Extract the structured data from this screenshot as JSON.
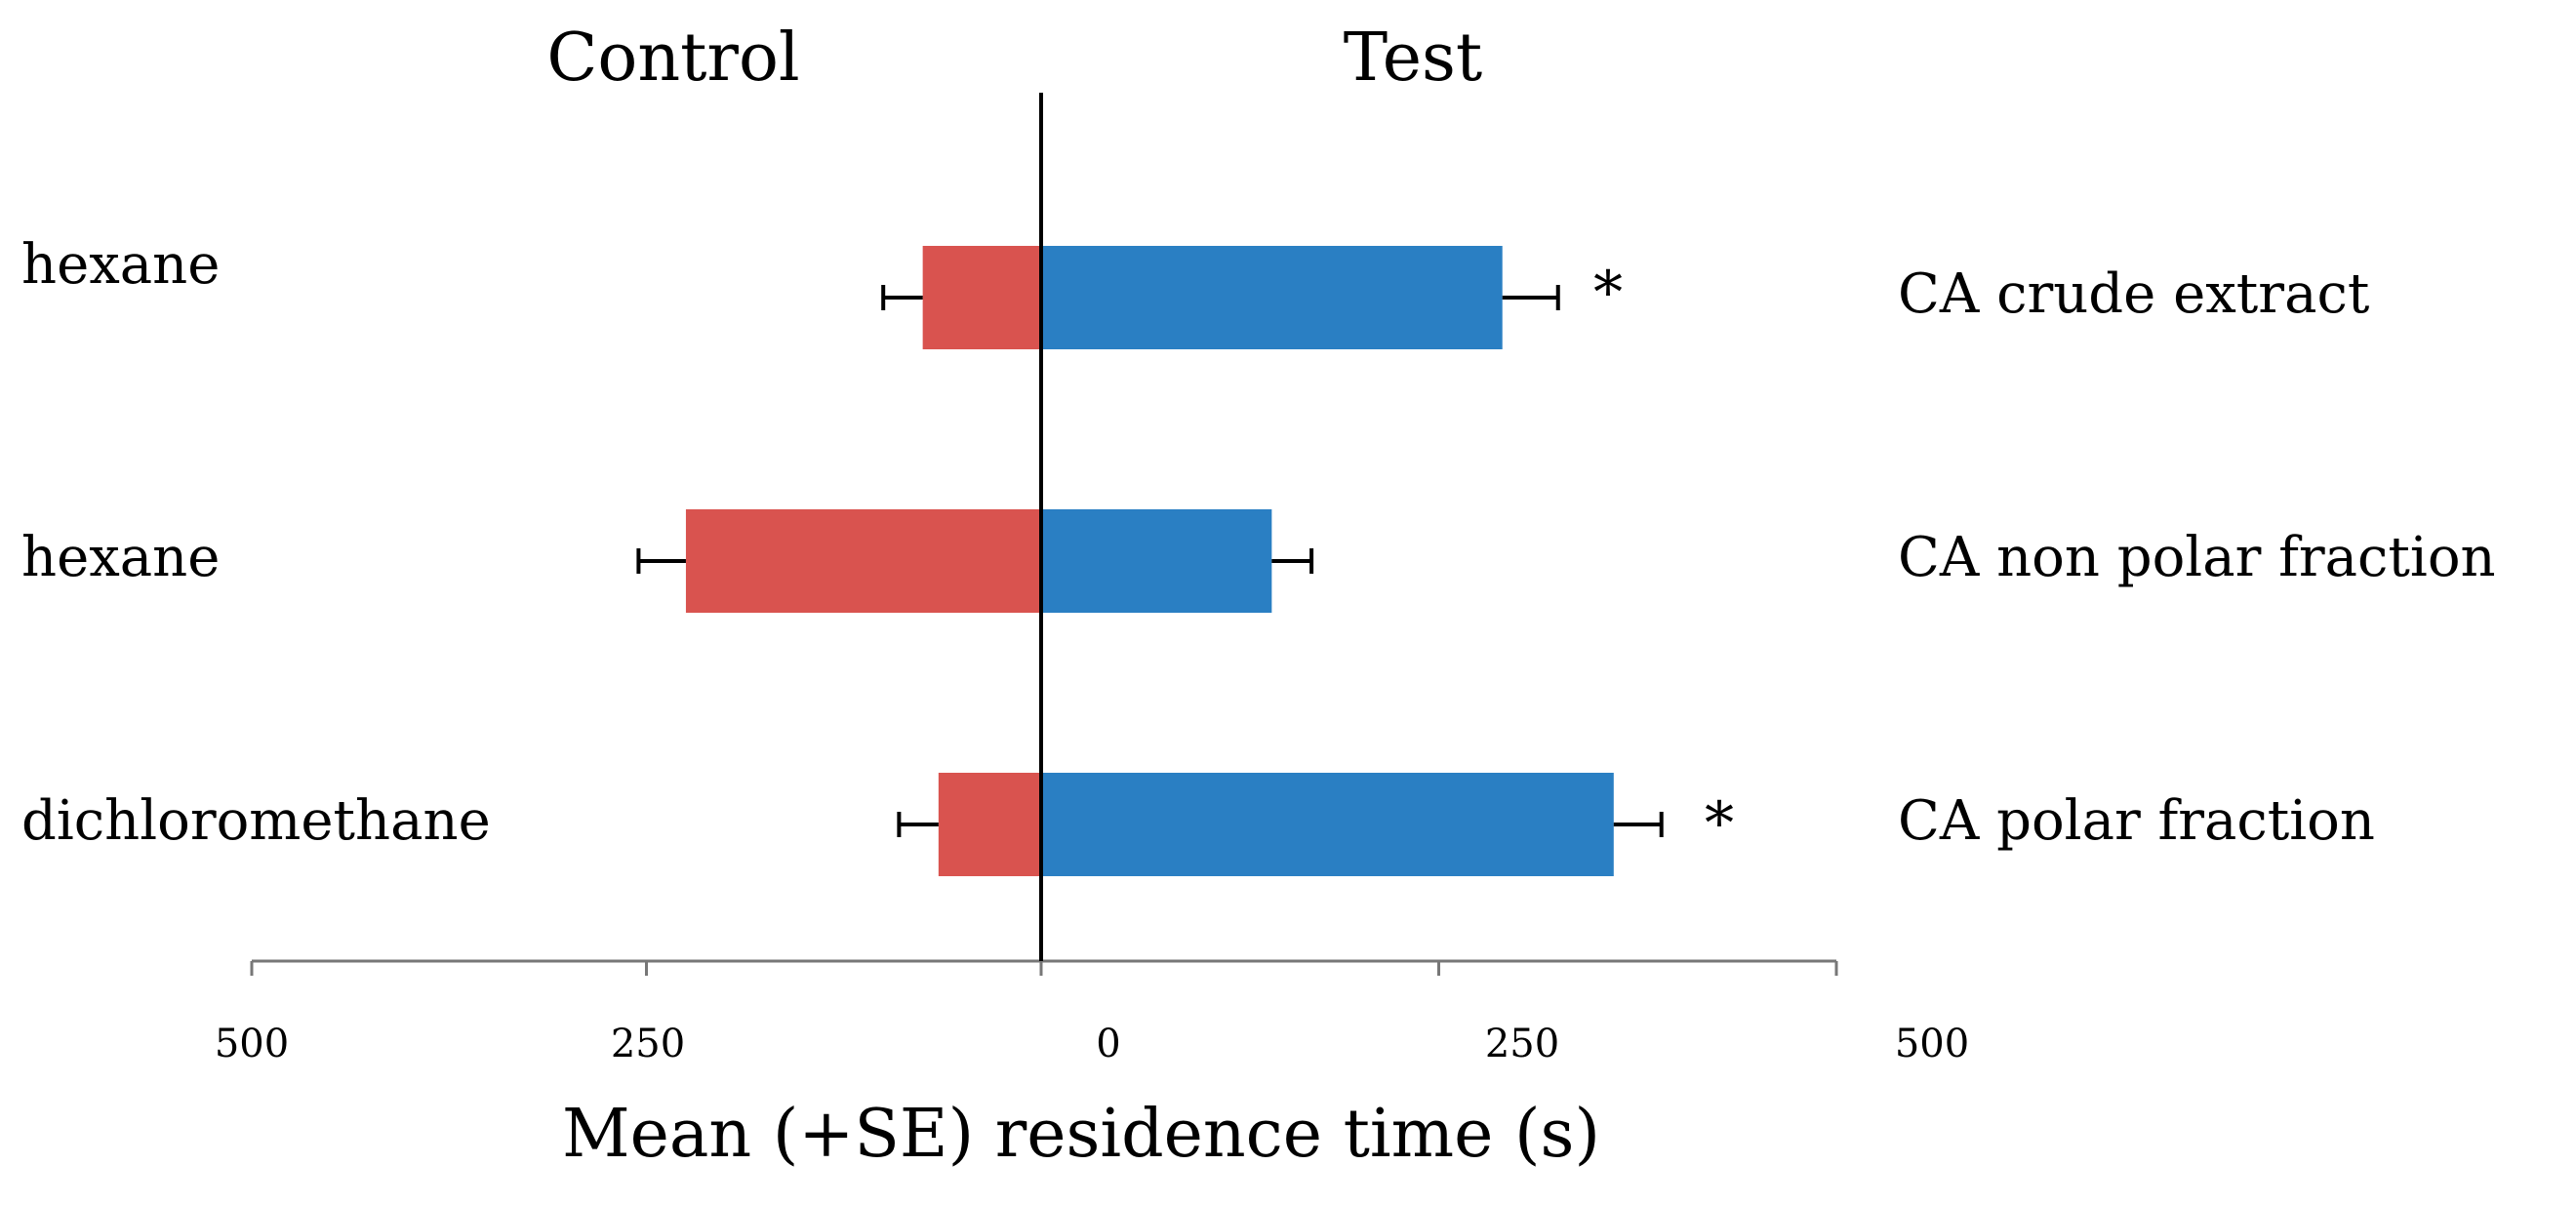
{
  "chart_data": {
    "type": "bar",
    "orientation": "horizontal-diverging",
    "xlabel": "Mean (+SE) residence time (s)",
    "side_labels": {
      "left": "Control",
      "right": "Test"
    },
    "xlim": [
      -500,
      500
    ],
    "x_ticks": [
      -500,
      -250,
      0,
      250,
      500
    ],
    "x_tick_labels": [
      "500",
      "250",
      "0",
      "250",
      "500"
    ],
    "categories": [
      {
        "control_label": "hexane",
        "test_label": "CA crude extract"
      },
      {
        "control_label": "hexane",
        "test_label": "CA non polar fraction"
      },
      {
        "control_label": "dichloromethane",
        "test_label": "CA polar fraction"
      }
    ],
    "series": [
      {
        "name": "Control",
        "color": "#d9534f",
        "values": [
          75,
          225,
          65
        ],
        "errors": [
          25,
          30,
          25
        ]
      },
      {
        "name": "Test",
        "color": "#2a7fc3",
        "values": [
          290,
          145,
          360
        ],
        "errors": [
          35,
          25,
          30
        ]
      }
    ],
    "significance": [
      "*",
      "",
      "*"
    ]
  }
}
